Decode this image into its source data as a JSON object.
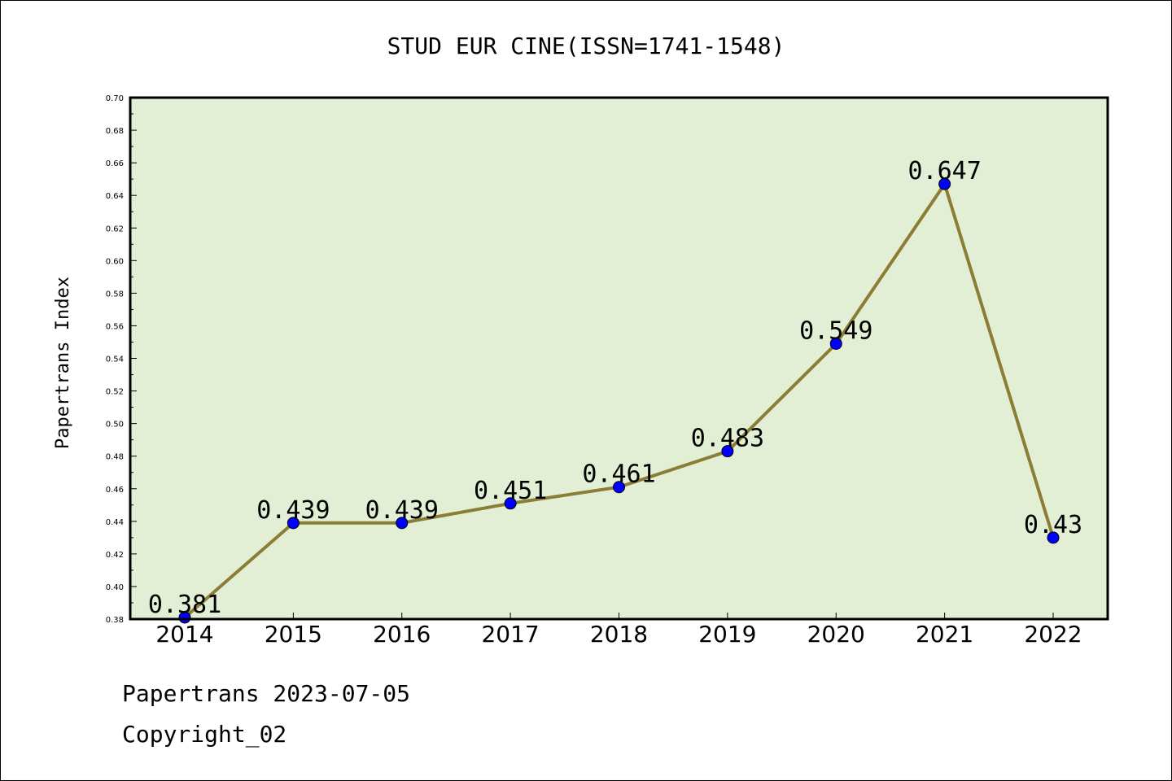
{
  "chart_data": {
    "type": "line",
    "title": "STUD EUR CINE(ISSN=1741-1548)",
    "xlabel": "",
    "ylabel": "Papertrans Index",
    "x": [
      "2014",
      "2015",
      "2016",
      "2017",
      "2018",
      "2019",
      "2020",
      "2021",
      "2022"
    ],
    "values": [
      0.381,
      0.439,
      0.439,
      0.451,
      0.461,
      0.483,
      0.549,
      0.647,
      0.43
    ],
    "data_labels": [
      "0.381",
      "0.439",
      "0.439",
      "0.451",
      "0.461",
      "0.483",
      "0.549",
      "0.647",
      "0.43"
    ],
    "ylim": [
      0.38,
      0.7
    ],
    "yticks": [
      "0.38",
      "0.40",
      "0.42",
      "0.44",
      "0.46",
      "0.48",
      "0.50",
      "0.52",
      "0.54",
      "0.56",
      "0.58",
      "0.60",
      "0.62",
      "0.64",
      "0.66",
      "0.68",
      "0.70"
    ],
    "grid": false,
    "legend": "none",
    "colors": {
      "plot_background": "#e2efd5",
      "line": "#8b7d35",
      "marker": "#0000ff",
      "marker_edge": "#000000"
    }
  },
  "footer": {
    "date_text": "Papertrans 2023-07-05",
    "copyright_text": "Copyright_02"
  }
}
